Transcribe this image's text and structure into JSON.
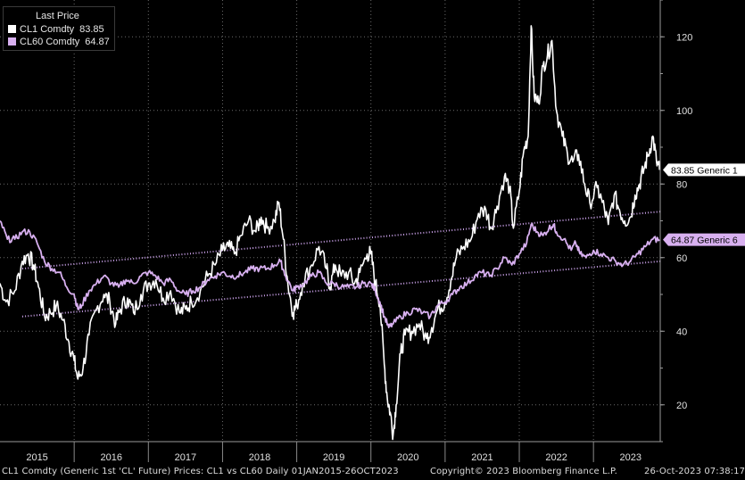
{
  "legend": {
    "title": "Last Price",
    "items": [
      {
        "name": "CL1 Comdty",
        "value": "83.85",
        "color": "#ffffff"
      },
      {
        "name": "CL60 Comdty",
        "value": "64.87",
        "color": "#d8b0f0"
      }
    ]
  },
  "footer": {
    "left": "CL1 Comdty (Generic 1st 'CL' Future) Prices: CL1 vs CL60  Daily 01JAN2015-26OCT2023",
    "center": "Copyright© 2023 Bloomberg Finance L.P.",
    "right": "26-Oct-2023 07:38:17"
  },
  "chart_data": {
    "type": "line",
    "ylim": [
      10,
      130
    ],
    "yticks": [
      20,
      40,
      60,
      80,
      100,
      120
    ],
    "xlim": [
      2015.0,
      2023.9
    ],
    "xticks": [
      {
        "label": "2015",
        "x": 2015.5
      },
      {
        "label": "2016",
        "x": 2016.5
      },
      {
        "label": "2017",
        "x": 2017.5
      },
      {
        "label": "2018",
        "x": 2018.5
      },
      {
        "label": "2019",
        "x": 2019.5
      },
      {
        "label": "2020",
        "x": 2020.5
      },
      {
        "label": "2021",
        "x": 2021.5
      },
      {
        "label": "2022",
        "x": 2022.5
      },
      {
        "label": "2023",
        "x": 2023.5
      }
    ],
    "grid": true,
    "series": [
      {
        "name": "CL1 Comdty",
        "color": "#ffffff",
        "tag": "83.85 Generic 1",
        "last": 83.85,
        "points": [
          [
            2015.0,
            53
          ],
          [
            2015.08,
            48
          ],
          [
            2015.2,
            51
          ],
          [
            2015.3,
            59
          ],
          [
            2015.38,
            61
          ],
          [
            2015.45,
            58
          ],
          [
            2015.52,
            52
          ],
          [
            2015.6,
            44
          ],
          [
            2015.68,
            45
          ],
          [
            2015.76,
            47
          ],
          [
            2015.85,
            43
          ],
          [
            2015.93,
            37
          ],
          [
            2016.0,
            32
          ],
          [
            2016.05,
            27
          ],
          [
            2016.12,
            30
          ],
          [
            2016.2,
            39
          ],
          [
            2016.3,
            46
          ],
          [
            2016.4,
            50
          ],
          [
            2016.48,
            48
          ],
          [
            2016.56,
            42
          ],
          [
            2016.62,
            46
          ],
          [
            2016.72,
            49
          ],
          [
            2016.8,
            45
          ],
          [
            2016.9,
            50
          ],
          [
            2017.0,
            53
          ],
          [
            2017.1,
            54
          ],
          [
            2017.2,
            49
          ],
          [
            2017.3,
            51
          ],
          [
            2017.42,
            45
          ],
          [
            2017.5,
            46
          ],
          [
            2017.58,
            48
          ],
          [
            2017.7,
            51
          ],
          [
            2017.8,
            55
          ],
          [
            2017.9,
            58
          ],
          [
            2018.0,
            62
          ],
          [
            2018.08,
            63
          ],
          [
            2018.16,
            61
          ],
          [
            2018.25,
            66
          ],
          [
            2018.35,
            70
          ],
          [
            2018.45,
            67
          ],
          [
            2018.52,
            71
          ],
          [
            2018.6,
            68
          ],
          [
            2018.7,
            70
          ],
          [
            2018.76,
            75
          ],
          [
            2018.82,
            65
          ],
          [
            2018.88,
            53
          ],
          [
            2018.95,
            45
          ],
          [
            2019.0,
            47
          ],
          [
            2019.08,
            53
          ],
          [
            2019.2,
            58
          ],
          [
            2019.3,
            63
          ],
          [
            2019.4,
            57
          ],
          [
            2019.45,
            52
          ],
          [
            2019.52,
            58
          ],
          [
            2019.6,
            55
          ],
          [
            2019.7,
            56
          ],
          [
            2019.78,
            53
          ],
          [
            2019.85,
            56
          ],
          [
            2019.95,
            61
          ],
          [
            2020.0,
            61
          ],
          [
            2020.06,
            53
          ],
          [
            2020.12,
            48
          ],
          [
            2020.18,
            31
          ],
          [
            2020.22,
            22
          ],
          [
            2020.26,
            18
          ],
          [
            2020.3,
            12
          ],
          [
            2020.34,
            20
          ],
          [
            2020.4,
            34
          ],
          [
            2020.46,
            39
          ],
          [
            2020.55,
            40
          ],
          [
            2020.65,
            42
          ],
          [
            2020.75,
            38
          ],
          [
            2020.82,
            41
          ],
          [
            2020.9,
            46
          ],
          [
            2021.0,
            48
          ],
          [
            2021.08,
            54
          ],
          [
            2021.15,
            60
          ],
          [
            2021.25,
            63
          ],
          [
            2021.35,
            65
          ],
          [
            2021.45,
            72
          ],
          [
            2021.55,
            73
          ],
          [
            2021.62,
            68
          ],
          [
            2021.7,
            74
          ],
          [
            2021.8,
            82
          ],
          [
            2021.87,
            79
          ],
          [
            2021.92,
            68
          ],
          [
            2022.0,
            78
          ],
          [
            2022.06,
            89
          ],
          [
            2022.12,
            93
          ],
          [
            2022.16,
            123
          ],
          [
            2022.2,
            104
          ],
          [
            2022.26,
            102
          ],
          [
            2022.32,
            112
          ],
          [
            2022.38,
            115
          ],
          [
            2022.44,
            119
          ],
          [
            2022.5,
            100
          ],
          [
            2022.58,
            93
          ],
          [
            2022.65,
            88
          ],
          [
            2022.72,
            86
          ],
          [
            2022.8,
            88
          ],
          [
            2022.88,
            80
          ],
          [
            2022.95,
            75
          ],
          [
            2023.05,
            79
          ],
          [
            2023.12,
            75
          ],
          [
            2023.2,
            69
          ],
          [
            2023.28,
            77
          ],
          [
            2023.35,
            73
          ],
          [
            2023.42,
            70
          ],
          [
            2023.5,
            71
          ],
          [
            2023.56,
            77
          ],
          [
            2023.62,
            80
          ],
          [
            2023.68,
            84
          ],
          [
            2023.74,
            88
          ],
          [
            2023.8,
            93
          ],
          [
            2023.85,
            86
          ],
          [
            2023.89,
            83.85
          ]
        ]
      },
      {
        "name": "CL60 Comdty",
        "color": "#d8b0f0",
        "tag": "64.87 Generic 6",
        "last": 64.87,
        "points": [
          [
            2015.0,
            70
          ],
          [
            2015.1,
            65
          ],
          [
            2015.2,
            65
          ],
          [
            2015.3,
            67
          ],
          [
            2015.4,
            67
          ],
          [
            2015.5,
            64
          ],
          [
            2015.6,
            59
          ],
          [
            2015.7,
            57
          ],
          [
            2015.8,
            56
          ],
          [
            2015.9,
            52
          ],
          [
            2016.0,
            50
          ],
          [
            2016.05,
            46
          ],
          [
            2016.1,
            47
          ],
          [
            2016.2,
            51
          ],
          [
            2016.3,
            53
          ],
          [
            2016.4,
            55
          ],
          [
            2016.5,
            53
          ],
          [
            2016.6,
            52
          ],
          [
            2016.7,
            54
          ],
          [
            2016.8,
            53
          ],
          [
            2016.9,
            55
          ],
          [
            2017.0,
            56
          ],
          [
            2017.1,
            55
          ],
          [
            2017.2,
            53
          ],
          [
            2017.3,
            54
          ],
          [
            2017.4,
            51
          ],
          [
            2017.5,
            50
          ],
          [
            2017.6,
            51
          ],
          [
            2017.7,
            52
          ],
          [
            2017.8,
            54
          ],
          [
            2017.9,
            55
          ],
          [
            2018.0,
            56
          ],
          [
            2018.1,
            55
          ],
          [
            2018.2,
            55
          ],
          [
            2018.3,
            56
          ],
          [
            2018.4,
            57
          ],
          [
            2018.5,
            57
          ],
          [
            2018.6,
            57
          ],
          [
            2018.7,
            58
          ],
          [
            2018.78,
            59
          ],
          [
            2018.85,
            55
          ],
          [
            2018.95,
            51
          ],
          [
            2019.0,
            52
          ],
          [
            2019.1,
            53
          ],
          [
            2019.2,
            55
          ],
          [
            2019.3,
            56
          ],
          [
            2019.4,
            53
          ],
          [
            2019.5,
            53
          ],
          [
            2019.6,
            52
          ],
          [
            2019.7,
            52
          ],
          [
            2019.8,
            52
          ],
          [
            2019.9,
            53
          ],
          [
            2020.0,
            53
          ],
          [
            2020.06,
            51
          ],
          [
            2020.12,
            48
          ],
          [
            2020.18,
            44
          ],
          [
            2020.24,
            41
          ],
          [
            2020.3,
            42
          ],
          [
            2020.4,
            44
          ],
          [
            2020.5,
            45
          ],
          [
            2020.6,
            46
          ],
          [
            2020.7,
            45
          ],
          [
            2020.8,
            44
          ],
          [
            2020.9,
            47
          ],
          [
            2021.0,
            48
          ],
          [
            2021.1,
            50
          ],
          [
            2021.2,
            52
          ],
          [
            2021.3,
            53
          ],
          [
            2021.4,
            55
          ],
          [
            2021.5,
            56
          ],
          [
            2021.6,
            55
          ],
          [
            2021.7,
            57
          ],
          [
            2021.8,
            60
          ],
          [
            2021.9,
            58
          ],
          [
            2022.0,
            61
          ],
          [
            2022.1,
            64
          ],
          [
            2022.16,
            69
          ],
          [
            2022.24,
            67
          ],
          [
            2022.32,
            66
          ],
          [
            2022.4,
            68
          ],
          [
            2022.46,
            69
          ],
          [
            2022.5,
            67
          ],
          [
            2022.6,
            65
          ],
          [
            2022.7,
            62
          ],
          [
            2022.76,
            64
          ],
          [
            2022.82,
            61
          ],
          [
            2022.9,
            60
          ],
          [
            2023.0,
            62
          ],
          [
            2023.1,
            61
          ],
          [
            2023.2,
            60
          ],
          [
            2023.3,
            59
          ],
          [
            2023.4,
            58
          ],
          [
            2023.5,
            59
          ],
          [
            2023.6,
            61
          ],
          [
            2023.7,
            63
          ],
          [
            2023.8,
            65
          ],
          [
            2023.89,
            64.87
          ]
        ]
      }
    ],
    "channel": {
      "color": "#c9a0e8",
      "upper": [
        [
          2015.3,
          57
        ],
        [
          2023.9,
          72.5
        ]
      ],
      "lower": [
        [
          2015.3,
          44
        ],
        [
          2023.9,
          59
        ]
      ]
    }
  }
}
